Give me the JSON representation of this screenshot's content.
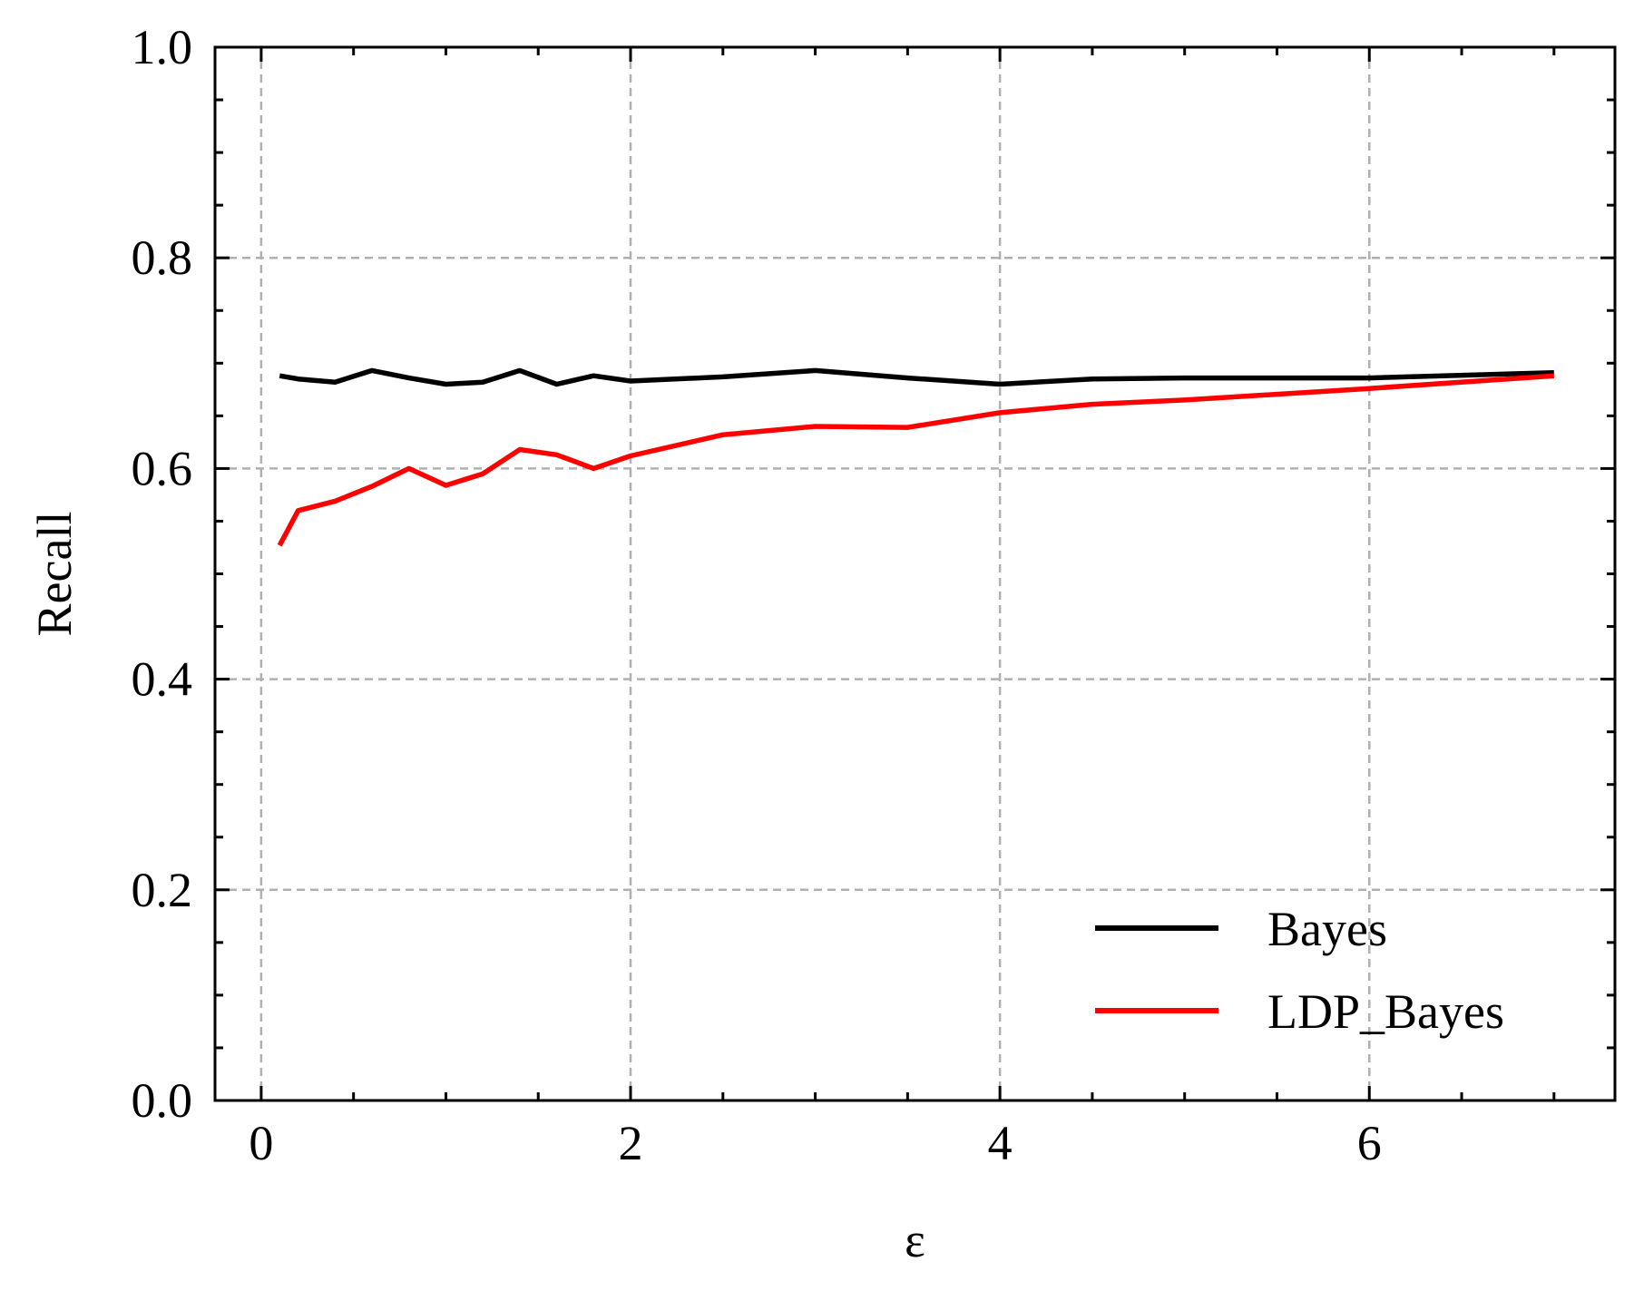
{
  "chart_data": {
    "type": "line",
    "title": "",
    "xlabel": "ε",
    "ylabel": "Recall",
    "xlim": [
      -0.25,
      7.33
    ],
    "ylim": [
      0.0,
      1.0
    ],
    "x_ticks": [
      0,
      2,
      4,
      6
    ],
    "x_tick_labels": [
      "0",
      "2",
      "4",
      "6"
    ],
    "x_minor_step": 0.5,
    "y_ticks": [
      0.0,
      0.2,
      0.4,
      0.6,
      0.8,
      1.0
    ],
    "y_tick_labels": [
      "0.0",
      "0.2",
      "0.4",
      "0.6",
      "0.8",
      "1.0"
    ],
    "y_minor_step": 0.05,
    "grid": true,
    "legend_position": "lower-right",
    "series": [
      {
        "name": "Bayes",
        "color": "#000000",
        "x": [
          0.1,
          0.2,
          0.4,
          0.6,
          0.8,
          1.0,
          1.2,
          1.4,
          1.6,
          1.8,
          2.0,
          2.5,
          3.0,
          3.5,
          4.0,
          4.5,
          5.0,
          6.0,
          7.0
        ],
        "y": [
          0.688,
          0.685,
          0.682,
          0.693,
          0.686,
          0.68,
          0.682,
          0.693,
          0.68,
          0.688,
          0.683,
          0.687,
          0.693,
          0.686,
          0.68,
          0.685,
          0.686,
          0.686,
          0.691
        ]
      },
      {
        "name": "LDP_Bayes",
        "color": "#ff0000",
        "x": [
          0.1,
          0.2,
          0.4,
          0.6,
          0.8,
          1.0,
          1.2,
          1.4,
          1.6,
          1.8,
          2.0,
          2.5,
          3.0,
          3.5,
          4.0,
          4.5,
          5.0,
          6.0,
          7.0
        ],
        "y": [
          0.527,
          0.56,
          0.569,
          0.583,
          0.6,
          0.584,
          0.595,
          0.618,
          0.613,
          0.6,
          0.612,
          0.632,
          0.64,
          0.639,
          0.653,
          0.661,
          0.665,
          0.676,
          0.688
        ]
      }
    ]
  }
}
